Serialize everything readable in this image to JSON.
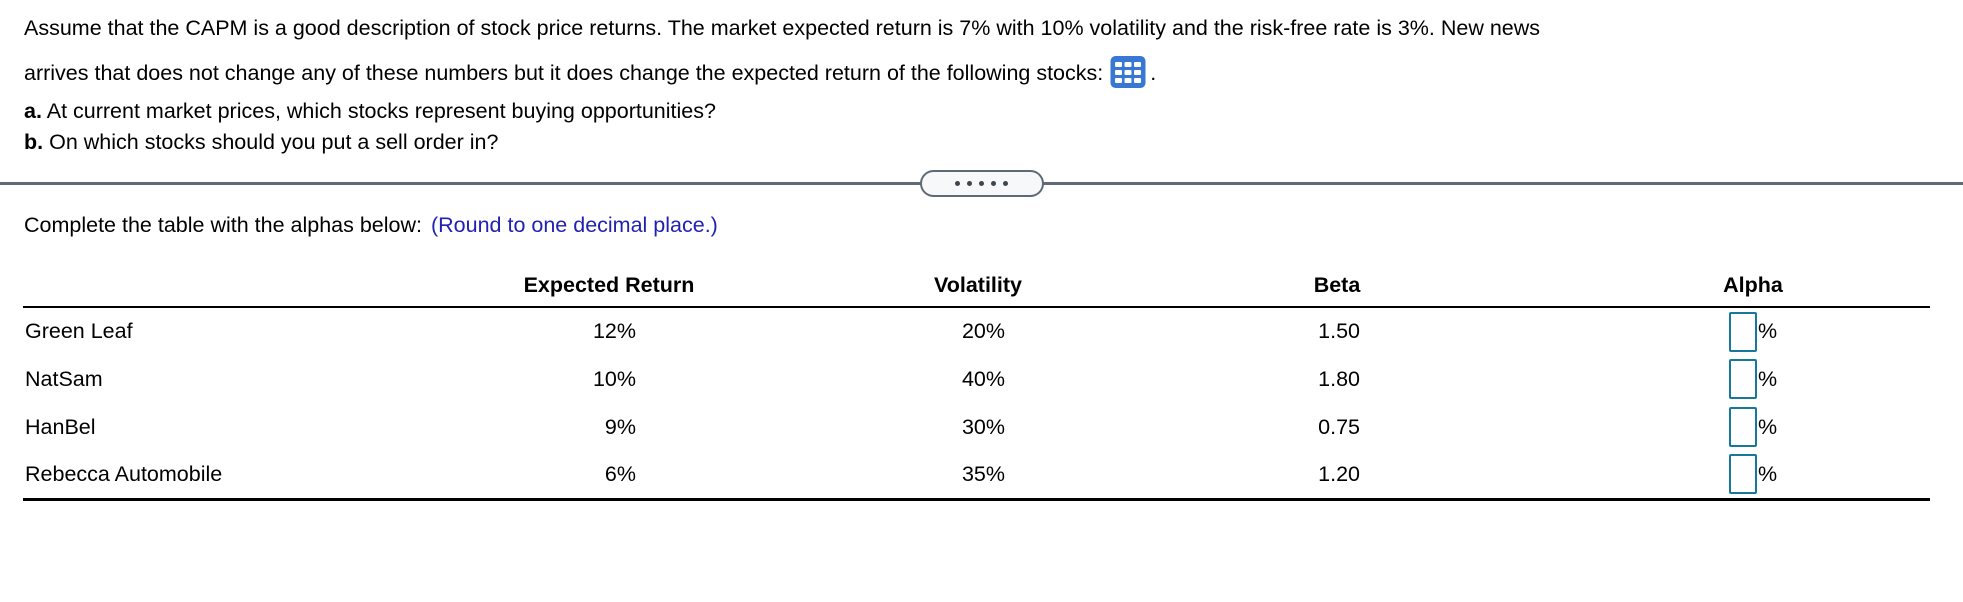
{
  "problem": {
    "line1": "Assume that the CAPM is a good description of stock price returns. The market expected return is 7% with 10% volatility and the risk-free rate is 3%. New news",
    "line2": "arrives that does not change any of these numbers but it does change the expected return of the following stocks:",
    "line2_suffix": ".",
    "parts": [
      {
        "label": "a.",
        "text": "At current market prices, which stocks represent buying opportunities?"
      },
      {
        "label": "b.",
        "text": "On which stocks should you put a sell order in?"
      }
    ]
  },
  "divider": {
    "dot_count": 5
  },
  "answer": {
    "instruction": "Complete the table with the alphas below:",
    "rounding_hint": "(Round to one decimal place.)"
  },
  "table": {
    "headers": {
      "name": "",
      "expected_return": "Expected Return",
      "volatility": "Volatility",
      "beta": "Beta",
      "alpha": "Alpha"
    },
    "rows": [
      {
        "name": "Green Leaf",
        "expected_return": "12%",
        "volatility": "20%",
        "beta": "1.50",
        "alpha_value": "",
        "alpha_unit": "%"
      },
      {
        "name": "NatSam",
        "expected_return": "10%",
        "volatility": "40%",
        "beta": "1.80",
        "alpha_value": "",
        "alpha_unit": "%"
      },
      {
        "name": "HanBel",
        "expected_return": "9%",
        "volatility": "30%",
        "beta": "0.75",
        "alpha_value": "",
        "alpha_unit": "%"
      },
      {
        "name": "Rebecca Automobile",
        "expected_return": "6%",
        "volatility": "35%",
        "beta": "1.20",
        "alpha_value": "",
        "alpha_unit": "%"
      }
    ]
  },
  "colors": {
    "text": "#000000",
    "hint_blue": "#2222b2",
    "icon_blue": "#3878d2",
    "divider_gray": "#5e6a76",
    "pill_bg": "#f6f8fa",
    "dot": "#3f464d",
    "input_border": "#17789b",
    "table_rule": "#000000"
  }
}
